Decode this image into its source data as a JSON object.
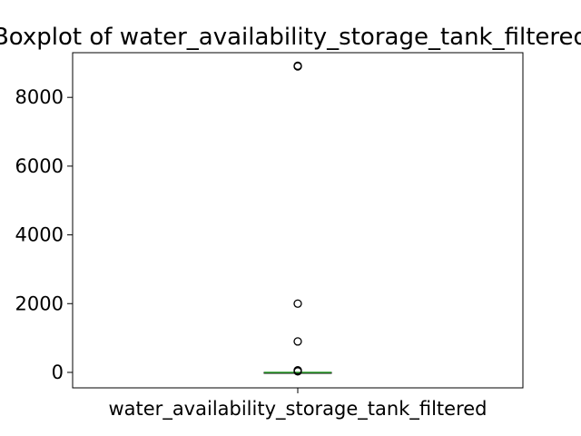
{
  "chart_data": {
    "type": "box",
    "title": "Boxplot of water_availability_storage_tank_filtered",
    "xlabel": "",
    "ylabel": "",
    "categories": [
      "water_availability_storage_tank_filtered"
    ],
    "ylim": [
      -450,
      9300
    ],
    "yticks": [
      0,
      2000,
      4000,
      6000,
      8000
    ],
    "ytick_labels": [
      "0",
      "2000",
      "4000",
      "6000",
      "8000"
    ],
    "grid": false,
    "series": [
      {
        "box": {
          "whisker_low": 0,
          "q1": 0,
          "median": 0,
          "q3": 0,
          "whisker_high": 0
        },
        "outliers": [
          30,
          60,
          900,
          2000,
          8900,
          8920
        ],
        "median_color": "#2ca02c"
      }
    ]
  }
}
